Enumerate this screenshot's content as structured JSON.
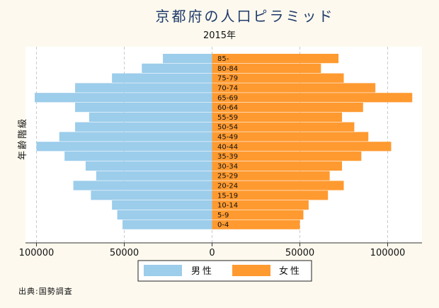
{
  "chart_data": {
    "type": "bar",
    "orientation": "horizontal-population-pyramid",
    "title": "京都府の人口ピラミッド",
    "subtitle": "2015年",
    "ylabel": "年齢階級",
    "xlabel": "",
    "xlim": [
      -110000,
      115000
    ],
    "xticks": [
      -100000,
      -50000,
      0,
      50000,
      100000
    ],
    "xtick_labels": [
      "100000",
      "50000",
      "0",
      "50000",
      "100000"
    ],
    "grid": true,
    "legend_position": "bottom",
    "categories": [
      "0-4",
      "5-9",
      "10-14",
      "15-19",
      "20-24",
      "25-29",
      "30-34",
      "35-39",
      "40-44",
      "45-49",
      "50-54",
      "55-59",
      "60-64",
      "65-69",
      "70-74",
      "75-79",
      "80-84",
      "85-"
    ],
    "series": [
      {
        "name": "男性",
        "color": "#9ccdeb",
        "values": [
          51000,
          54000,
          57000,
          69000,
          79000,
          66000,
          72000,
          84000,
          100000,
          87000,
          78000,
          70000,
          78000,
          101000,
          78000,
          57000,
          40000,
          28000
        ]
      },
      {
        "name": "女性",
        "color": "#ff9a30",
        "values": [
          50000,
          52000,
          55000,
          66000,
          75000,
          67000,
          74000,
          85000,
          102000,
          89000,
          81000,
          74000,
          86000,
          114000,
          93000,
          75000,
          62000,
          72000
        ]
      }
    ],
    "source": "出典:国勢調査"
  }
}
